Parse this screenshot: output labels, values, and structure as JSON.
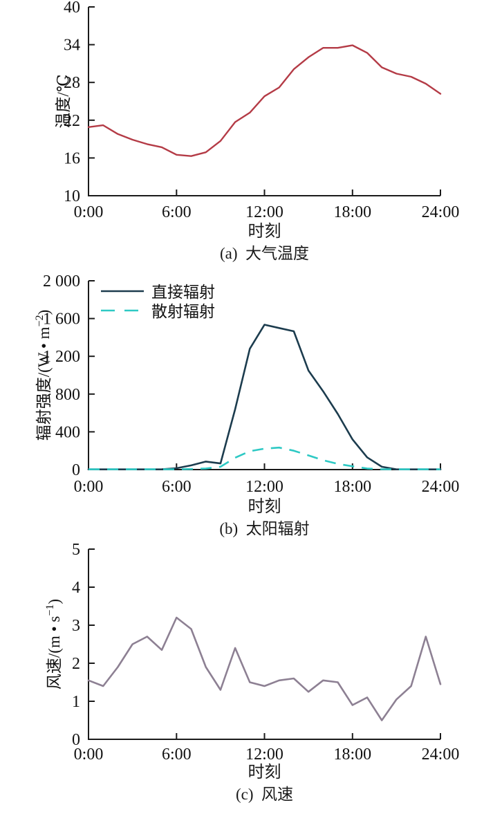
{
  "page": {
    "background": "#ffffff",
    "axis_color": "#1a1a1a",
    "text_color": "#111111"
  },
  "chart_data": [
    {
      "id": "air-temperature",
      "type": "line",
      "caption": "(a)  大气温度",
      "xlabel": "时刻",
      "ylabel_plain": "温度/℃",
      "ylabel_segments": [
        {
          "t": "温度/℃",
          "sup": false
        }
      ],
      "xlim": [
        0,
        24
      ],
      "ylim": [
        10,
        40
      ],
      "x_tick_hours": [
        0,
        6,
        12,
        18,
        24
      ],
      "x_tick_labels": [
        "0:00",
        "6:00",
        "12:00",
        "18:00",
        "24:00"
      ],
      "y_ticks": [
        10,
        16,
        22,
        28,
        34,
        40
      ],
      "y_tick_labels": [
        "10",
        "16",
        "22",
        "28",
        "34",
        "40"
      ],
      "grid": false,
      "legend": {
        "show": false,
        "entries": []
      },
      "x_sampling": "hourly 0:00-24:00",
      "series": [
        {
          "name": "大气温度",
          "color": "#b43b46",
          "dash": null,
          "width": 2.4,
          "values": [
            20.9,
            21.2,
            19.8,
            18.9,
            18.2,
            17.7,
            16.5,
            16.3,
            16.9,
            18.7,
            21.7,
            23.2,
            25.8,
            27.2,
            30.1,
            32.0,
            33.5,
            33.5,
            33.9,
            32.7,
            30.4,
            29.4,
            28.9,
            27.8,
            26.2
          ]
        }
      ]
    },
    {
      "id": "solar-radiation",
      "type": "line",
      "caption": "(b)  太阳辐射",
      "xlabel": "时刻",
      "ylabel_plain": "辐射强度/(W·m−2)",
      "ylabel_segments": [
        {
          "t": "辐射强度/(W",
          "sup": false
        },
        {
          "t": " • ",
          "sup": false
        },
        {
          "t": "m",
          "sup": false
        },
        {
          "t": "−2",
          "sup": true
        },
        {
          "t": ")",
          "sup": false
        }
      ],
      "xlim": [
        0,
        24
      ],
      "ylim": [
        0,
        2000
      ],
      "x_tick_hours": [
        0,
        6,
        12,
        18,
        24
      ],
      "x_tick_labels": [
        "0:00",
        "6:00",
        "12:00",
        "18:00",
        "24:00"
      ],
      "y_ticks": [
        0,
        400,
        800,
        1200,
        1600,
        2000
      ],
      "y_tick_labels": [
        "0",
        "400",
        "800",
        "1 200",
        "1 600",
        "2 000"
      ],
      "grid": false,
      "legend": {
        "show": true,
        "position": "top-left",
        "entries": [
          "直接辐射",
          "散射辐射"
        ]
      },
      "x_sampling": "hourly 0:00-24:00",
      "series": [
        {
          "name": "直接辐射",
          "color": "#1c3c4e",
          "dash": null,
          "width": 2.6,
          "values": [
            2,
            2,
            2,
            2,
            2,
            3,
            15,
            45,
            85,
            65,
            640,
            1280,
            1535,
            1500,
            1465,
            1050,
            830,
            590,
            320,
            130,
            30,
            2,
            2,
            2,
            2
          ]
        },
        {
          "name": "散射辐射",
          "color": "#2ec9c4",
          "dash": "16 11",
          "width": 2.6,
          "values": [
            3,
            3,
            3,
            3,
            3,
            3,
            4,
            6,
            12,
            30,
            125,
            195,
            222,
            233,
            200,
            150,
            100,
            60,
            35,
            12,
            4,
            3,
            3,
            3,
            3
          ]
        }
      ]
    },
    {
      "id": "wind-speed",
      "type": "line",
      "caption": "(c)  风速",
      "xlabel": "时刻",
      "ylabel_plain": "风速/(m·s−1)",
      "ylabel_segments": [
        {
          "t": "风速/(m",
          "sup": false
        },
        {
          "t": " • ",
          "sup": false
        },
        {
          "t": "s",
          "sup": false
        },
        {
          "t": "−1",
          "sup": true
        },
        {
          "t": ")",
          "sup": false
        }
      ],
      "xlim": [
        0,
        24
      ],
      "ylim": [
        0,
        5
      ],
      "x_tick_hours": [
        0,
        6,
        12,
        18,
        24
      ],
      "x_tick_labels": [
        "0:00",
        "6:00",
        "12:00",
        "18:00",
        "24:00"
      ],
      "y_ticks": [
        0,
        1,
        2,
        3,
        4,
        5
      ],
      "y_tick_labels": [
        "0",
        "1",
        "2",
        "3",
        "4",
        "5"
      ],
      "grid": false,
      "legend": {
        "show": false,
        "entries": []
      },
      "x_sampling": "hourly 0:00-24:00",
      "series": [
        {
          "name": "风速",
          "color": "#8d8093",
          "dash": null,
          "width": 2.6,
          "values": [
            1.55,
            1.4,
            1.9,
            2.5,
            2.7,
            2.35,
            3.2,
            2.9,
            1.9,
            1.3,
            2.4,
            1.5,
            1.4,
            1.55,
            1.6,
            1.25,
            1.55,
            1.5,
            0.9,
            1.1,
            0.5,
            1.05,
            1.4,
            2.7,
            1.45
          ]
        }
      ]
    }
  ]
}
